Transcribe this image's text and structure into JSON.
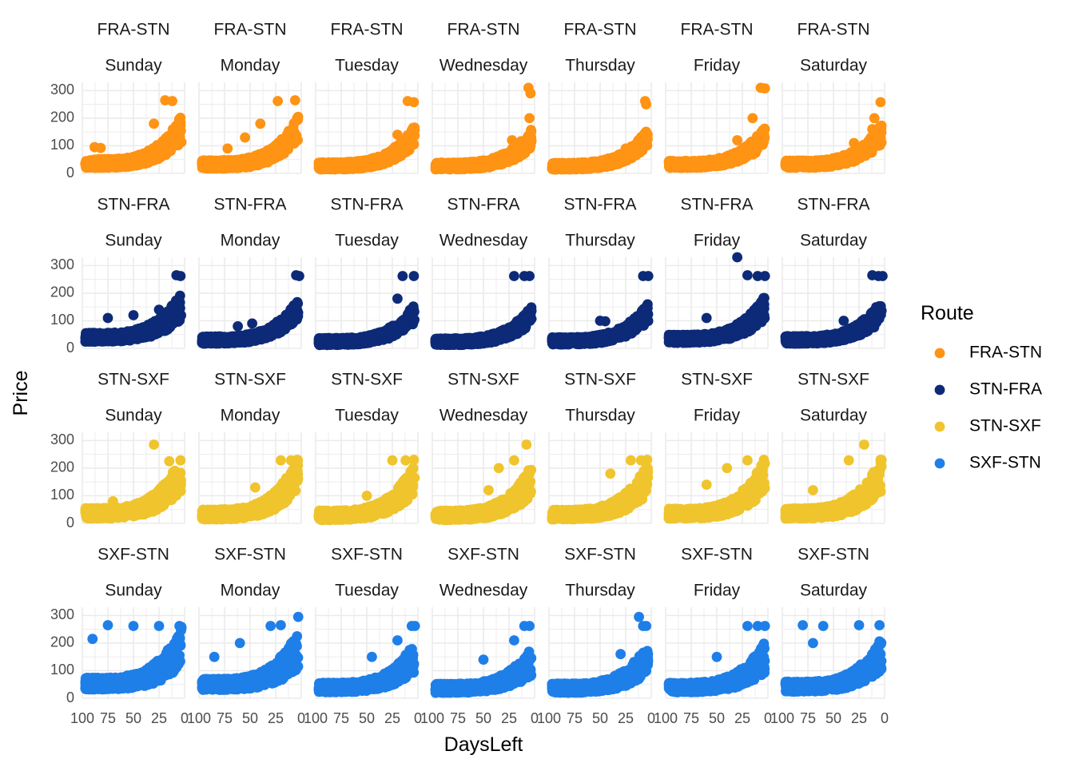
{
  "chart_data": {
    "type": "scatter",
    "title": "",
    "xlabel": "DaysLeft",
    "ylabel": "Price",
    "facet_rows": [
      "FRA-STN",
      "STN-FRA",
      "STN-SXF",
      "SXF-STN"
    ],
    "facet_cols": [
      "Sunday",
      "Monday",
      "Tuesday",
      "Wednesday",
      "Thursday",
      "Friday",
      "Saturday"
    ],
    "x_axis": {
      "reversed": true,
      "lim": [
        100,
        0
      ],
      "ticks": [
        100,
        75,
        50,
        25,
        0
      ],
      "tick_labels": [
        "100",
        "75",
        "50",
        "25",
        "0"
      ]
    },
    "y_axis": {
      "lim": [
        0,
        330
      ],
      "ticks": [
        0,
        100,
        200,
        300
      ],
      "tick_labels": [
        "0",
        "100",
        "200",
        "300"
      ]
    },
    "grid": true,
    "legend": {
      "title": "Route",
      "placement": "right",
      "entries": [
        {
          "name": "FRA-STN",
          "color": "#FF9313"
        },
        {
          "name": "STN-FRA",
          "color": "#0D2A78"
        },
        {
          "name": "STN-SXF",
          "color": "#F0C42C"
        },
        {
          "name": "SXF-STN",
          "color": "#1E7FE8"
        }
      ]
    },
    "series": [
      {
        "name": "FRA-STN",
        "color": "#FF9313",
        "panels": [
          {
            "day": "Sunday",
            "base": 28,
            "growth": 105,
            "spread": 95,
            "max": 265,
            "peaks": [
              [
                19,
                265
              ],
              [
                12,
                262
              ],
              [
                30,
                180
              ],
              [
                88,
                95
              ],
              [
                82,
                92
              ]
            ]
          },
          {
            "day": "Monday",
            "base": 25,
            "growth": 110,
            "spread": 90,
            "max": 265,
            "peaks": [
              [
                6,
                265
              ],
              [
                23,
                262
              ],
              [
                40,
                180
              ],
              [
                55,
                130
              ],
              [
                72,
                90
              ]
            ]
          },
          {
            "day": "Tuesday",
            "base": 22,
            "growth": 100,
            "spread": 70,
            "max": 262,
            "peaks": [
              [
                10,
                262
              ],
              [
                4,
                258
              ],
              [
                20,
                140
              ]
            ]
          },
          {
            "day": "Wednesday",
            "base": 22,
            "growth": 85,
            "spread": 65,
            "max": 310,
            "peaks": [
              [
                6,
                310
              ],
              [
                4,
                290
              ],
              [
                5,
                200
              ],
              [
                22,
                120
              ]
            ]
          },
          {
            "day": "Thursday",
            "base": 22,
            "growth": 95,
            "spread": 60,
            "max": 262,
            "peaks": [
              [
                6,
                262
              ],
              [
                5,
                250
              ],
              [
                25,
                90
              ]
            ]
          },
          {
            "day": "Friday",
            "base": 28,
            "growth": 90,
            "spread": 65,
            "max": 310,
            "peaks": [
              [
                7,
                310
              ],
              [
                3,
                308
              ],
              [
                15,
                200
              ],
              [
                30,
                120
              ]
            ]
          },
          {
            "day": "Saturday",
            "base": 28,
            "growth": 95,
            "spread": 70,
            "max": 258,
            "peaks": [
              [
                4,
                258
              ],
              [
                10,
                200
              ],
              [
                12,
                160
              ],
              [
                30,
                110
              ]
            ]
          }
        ]
      },
      {
        "name": "STN-FRA",
        "color": "#0D2A78",
        "panels": [
          {
            "day": "Sunday",
            "base": 32,
            "growth": 90,
            "spread": 100,
            "max": 265,
            "peaks": [
              [
                8,
                265
              ],
              [
                4,
                262
              ],
              [
                25,
                140
              ],
              [
                50,
                120
              ],
              [
                75,
                110
              ]
            ]
          },
          {
            "day": "Monday",
            "base": 25,
            "growth": 100,
            "spread": 70,
            "max": 265,
            "peaks": [
              [
                5,
                265
              ],
              [
                2,
                262
              ],
              [
                48,
                90
              ],
              [
                62,
                80
              ]
            ]
          },
          {
            "day": "Tuesday",
            "base": 20,
            "growth": 90,
            "spread": 65,
            "max": 262,
            "peaks": [
              [
                15,
                262
              ],
              [
                4,
                262
              ],
              [
                20,
                180
              ]
            ]
          },
          {
            "day": "Wednesday",
            "base": 20,
            "growth": 85,
            "spread": 60,
            "max": 262,
            "peaks": [
              [
                20,
                262
              ],
              [
                10,
                262
              ],
              [
                5,
                262
              ]
            ]
          },
          {
            "day": "Thursday",
            "base": 22,
            "growth": 90,
            "spread": 70,
            "max": 262,
            "peaks": [
              [
                8,
                262
              ],
              [
                3,
                262
              ],
              [
                50,
                100
              ],
              [
                45,
                98
              ]
            ]
          },
          {
            "day": "Friday",
            "base": 28,
            "growth": 95,
            "spread": 85,
            "max": 330,
            "peaks": [
              [
                30,
                330
              ],
              [
                20,
                265
              ],
              [
                10,
                262
              ],
              [
                3,
                262
              ],
              [
                60,
                110
              ]
            ]
          },
          {
            "day": "Saturday",
            "base": 25,
            "growth": 90,
            "spread": 75,
            "max": 265,
            "peaks": [
              [
                12,
                265
              ],
              [
                6,
                262
              ],
              [
                2,
                262
              ],
              [
                40,
                100
              ]
            ]
          }
        ]
      },
      {
        "name": "STN-SXF",
        "color": "#F0C42C",
        "panels": [
          {
            "day": "Sunday",
            "base": 25,
            "growth": 110,
            "spread": 130,
            "max": 285,
            "peaks": [
              [
                30,
                285
              ],
              [
                4,
                228
              ],
              [
                15,
                225
              ],
              [
                70,
                80
              ]
            ]
          },
          {
            "day": "Monday",
            "base": 22,
            "growth": 120,
            "spread": 120,
            "max": 230,
            "peaks": [
              [
                4,
                230
              ],
              [
                10,
                228
              ],
              [
                20,
                228
              ],
              [
                45,
                130
              ]
            ]
          },
          {
            "day": "Tuesday",
            "base": 20,
            "growth": 110,
            "spread": 110,
            "max": 230,
            "peaks": [
              [
                4,
                230
              ],
              [
                12,
                228
              ],
              [
                25,
                228
              ],
              [
                50,
                100
              ]
            ]
          },
          {
            "day": "Wednesday",
            "base": 20,
            "growth": 100,
            "spread": 110,
            "max": 285,
            "peaks": [
              [
                8,
                285
              ],
              [
                20,
                228
              ],
              [
                35,
                200
              ],
              [
                45,
                120
              ]
            ]
          },
          {
            "day": "Thursday",
            "base": 22,
            "growth": 105,
            "spread": 115,
            "max": 230,
            "peaks": [
              [
                4,
                230
              ],
              [
                10,
                228
              ],
              [
                20,
                228
              ],
              [
                40,
                180
              ]
            ]
          },
          {
            "day": "Friday",
            "base": 25,
            "growth": 110,
            "spread": 120,
            "max": 230,
            "peaks": [
              [
                4,
                230
              ],
              [
                20,
                228
              ],
              [
                40,
                200
              ],
              [
                60,
                140
              ]
            ]
          },
          {
            "day": "Saturday",
            "base": 25,
            "growth": 110,
            "spread": 125,
            "max": 285,
            "peaks": [
              [
                20,
                285
              ],
              [
                4,
                230
              ],
              [
                35,
                228
              ],
              [
                70,
                120
              ]
            ]
          }
        ]
      },
      {
        "name": "SXF-STN",
        "color": "#1E7FE8",
        "panels": [
          {
            "day": "Sunday",
            "base": 40,
            "growth": 90,
            "spread": 150,
            "max": 265,
            "peaks": [
              [
                75,
                265
              ],
              [
                50,
                262
              ],
              [
                25,
                262
              ],
              [
                5,
                262
              ],
              [
                90,
                215
              ]
            ]
          },
          {
            "day": "Monday",
            "base": 38,
            "growth": 85,
            "spread": 140,
            "max": 295,
            "peaks": [
              [
                3,
                295
              ],
              [
                20,
                265
              ],
              [
                30,
                262
              ],
              [
                60,
                200
              ],
              [
                85,
                150
              ]
            ]
          },
          {
            "day": "Tuesday",
            "base": 30,
            "growth": 80,
            "spread": 110,
            "max": 262,
            "peaks": [
              [
                6,
                262
              ],
              [
                3,
                262
              ],
              [
                20,
                210
              ],
              [
                45,
                150
              ]
            ]
          },
          {
            "day": "Wednesday",
            "base": 28,
            "growth": 70,
            "spread": 100,
            "max": 262,
            "peaks": [
              [
                10,
                262
              ],
              [
                5,
                262
              ],
              [
                20,
                210
              ],
              [
                50,
                140
              ]
            ]
          },
          {
            "day": "Thursday",
            "base": 28,
            "growth": 80,
            "spread": 105,
            "max": 295,
            "peaks": [
              [
                12,
                295
              ],
              [
                8,
                262
              ],
              [
                5,
                262
              ],
              [
                30,
                160
              ]
            ]
          },
          {
            "day": "Friday",
            "base": 30,
            "growth": 80,
            "spread": 110,
            "max": 262,
            "peaks": [
              [
                20,
                262
              ],
              [
                10,
                262
              ],
              [
                3,
                262
              ],
              [
                50,
                150
              ]
            ]
          },
          {
            "day": "Saturday",
            "base": 32,
            "growth": 85,
            "spread": 120,
            "max": 265,
            "peaks": [
              [
                80,
                265
              ],
              [
                60,
                262
              ],
              [
                25,
                265
              ],
              [
                5,
                265
              ],
              [
                70,
                200
              ]
            ]
          }
        ]
      }
    ]
  }
}
